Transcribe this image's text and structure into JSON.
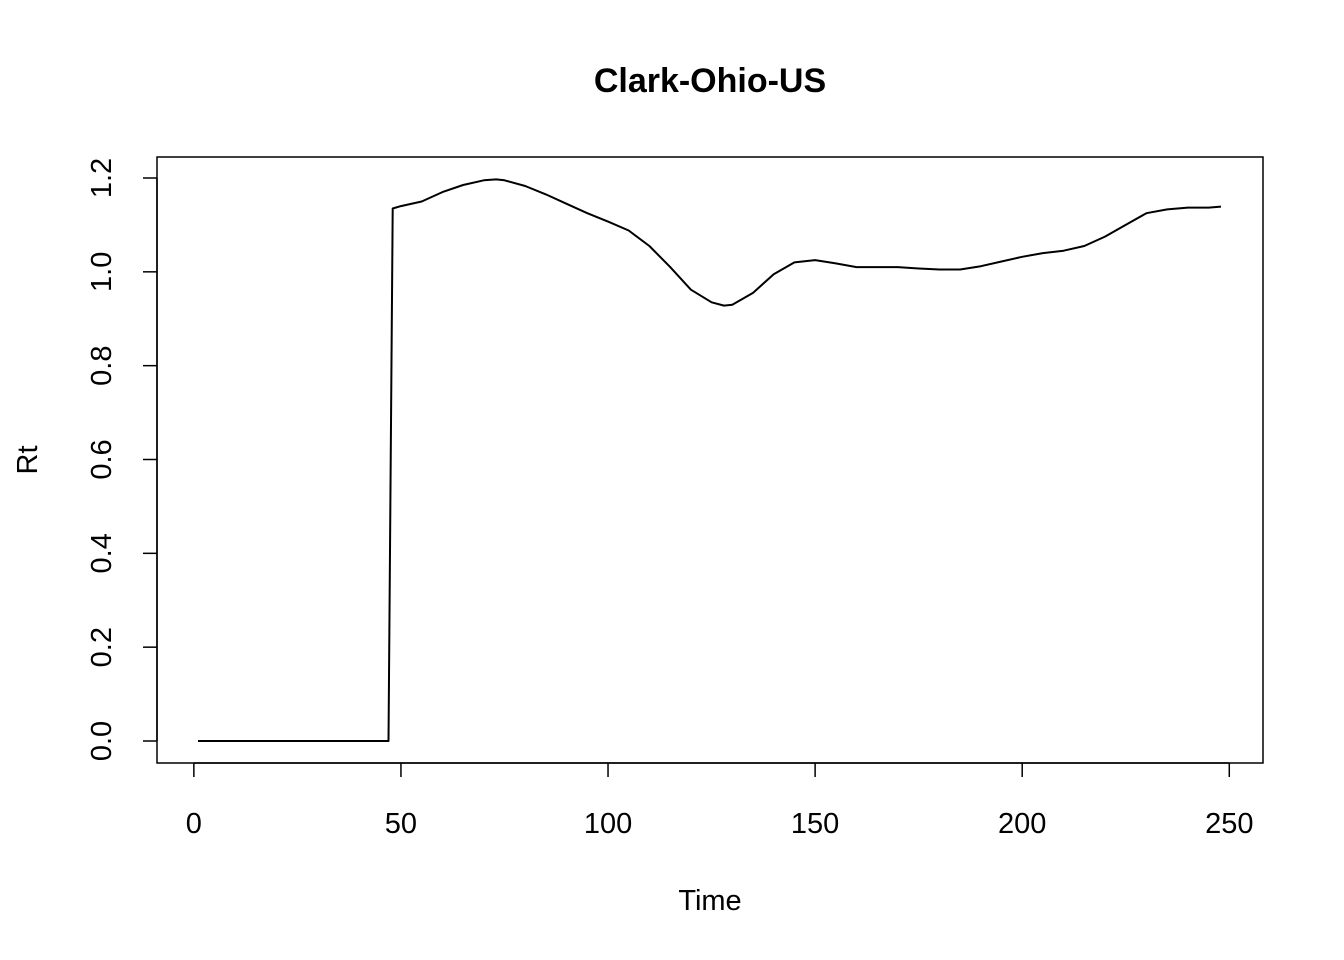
{
  "chart_data": {
    "type": "line",
    "title": "Clark-Ohio-US",
    "xlabel": "Time",
    "ylabel": "Rt",
    "xlim": [
      1,
      248
    ],
    "ylim": [
      0,
      1.2
    ],
    "x_ticks": [
      0,
      50,
      100,
      150,
      200,
      250
    ],
    "y_ticks": [
      0.0,
      0.2,
      0.4,
      0.6,
      0.8,
      1.0,
      1.2
    ],
    "x_tick_labels": [
      "0",
      "50",
      "100",
      "150",
      "200",
      "250"
    ],
    "y_tick_labels": [
      "0.0",
      "0.2",
      "0.4",
      "0.6",
      "0.8",
      "1.0",
      "1.2"
    ],
    "grid": false,
    "series": [
      {
        "color": "#000000",
        "x": [
          1,
          47,
          48,
          50,
          55,
          60,
          65,
          70,
          73,
          75,
          80,
          85,
          90,
          95,
          100,
          105,
          110,
          115,
          120,
          125,
          128,
          130,
          135,
          140,
          145,
          150,
          155,
          160,
          170,
          175,
          180,
          185,
          190,
          195,
          200,
          205,
          210,
          215,
          220,
          225,
          230,
          235,
          240,
          245,
          248
        ],
        "y": [
          0.0,
          0.0,
          1.135,
          1.14,
          1.15,
          1.17,
          1.185,
          1.195,
          1.197,
          1.195,
          1.183,
          1.165,
          1.145,
          1.125,
          1.107,
          1.088,
          1.055,
          1.01,
          0.962,
          0.935,
          0.928,
          0.93,
          0.955,
          0.995,
          1.02,
          1.025,
          1.018,
          1.01,
          1.01,
          1.007,
          1.005,
          1.005,
          1.012,
          1.022,
          1.032,
          1.04,
          1.045,
          1.055,
          1.075,
          1.1,
          1.125,
          1.133,
          1.137,
          1.137,
          1.139
        ]
      }
    ]
  }
}
